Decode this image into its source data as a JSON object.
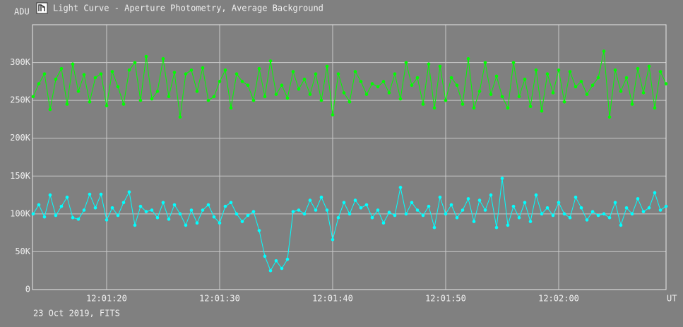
{
  "chart_data": {
    "type": "line",
    "title": "Light Curve - Aperture Photometry, Average Background",
    "ylabel": "ADU",
    "xlabel": "UT",
    "footer": "23 Oct 2019, FITS",
    "grid": true,
    "xlim": [
      73.44,
      129.5
    ],
    "xticks": [
      {
        "value": 80,
        "label": "12:01:20"
      },
      {
        "value": 90,
        "label": "12:01:30"
      },
      {
        "value": 100,
        "label": "12:01:40"
      },
      {
        "value": 110,
        "label": "12:01:50"
      },
      {
        "value": 120,
        "label": "12:02:00"
      }
    ],
    "ylim": [
      0,
      350000
    ],
    "yticks": [
      0,
      {
        "value": 50000,
        "label": "50K"
      },
      {
        "value": 100000,
        "label": "100K"
      },
      {
        "value": 150000,
        "label": "150K"
      },
      {
        "value": 200000,
        "label": "200K"
      },
      {
        "value": 250000,
        "label": "250K"
      },
      {
        "value": 300000,
        "label": "300K"
      }
    ],
    "x": [
      73.5,
      74,
      74.5,
      75,
      75.5,
      76,
      76.5,
      77,
      77.5,
      78,
      78.5,
      79,
      79.5,
      80,
      80.5,
      81,
      81.5,
      82,
      82.5,
      83,
      83.5,
      84,
      84.5,
      85,
      85.5,
      86,
      86.5,
      87,
      87.5,
      88,
      88.5,
      89,
      89.5,
      90,
      90.5,
      91,
      91.5,
      92,
      92.5,
      93,
      93.5,
      94,
      94.5,
      95,
      95.5,
      96,
      96.5,
      97,
      97.5,
      98,
      98.5,
      99,
      99.5,
      100,
      100.5,
      101,
      101.5,
      102,
      102.5,
      103,
      103.5,
      104,
      104.5,
      105,
      105.5,
      106,
      106.5,
      107,
      107.5,
      108,
      108.5,
      109,
      109.5,
      110,
      110.5,
      111,
      111.5,
      112,
      112.5,
      113,
      113.5,
      114,
      114.5,
      115,
      115.5,
      116,
      116.5,
      117,
      117.5,
      118,
      118.5,
      119,
      119.5,
      120,
      120.5,
      121,
      121.5,
      122,
      122.5,
      123,
      123.5,
      124,
      124.5,
      125,
      125.5,
      126,
      126.5,
      127,
      127.5,
      128,
      128.5,
      129,
      129.5
    ],
    "series": [
      {
        "color": "#00ff00",
        "values": [
          255000,
          272000,
          285000,
          238000,
          278000,
          292000,
          245000,
          298000,
          262000,
          284000,
          248000,
          280000,
          285000,
          243000,
          288000,
          268000,
          245000,
          290000,
          300000,
          250000,
          308000,
          252000,
          262000,
          305000,
          255000,
          287000,
          228000,
          285000,
          290000,
          262000,
          293000,
          250000,
          255000,
          275000,
          290000,
          240000,
          285000,
          275000,
          270000,
          250000,
          292000,
          255000,
          302000,
          258000,
          270000,
          253000,
          288000,
          265000,
          278000,
          258000,
          285000,
          250000,
          295000,
          231000,
          285000,
          260000,
          248000,
          288000,
          275000,
          258000,
          272000,
          268000,
          275000,
          260000,
          285000,
          252000,
          300000,
          270000,
          280000,
          245000,
          298000,
          240000,
          295000,
          250000,
          280000,
          270000,
          245000,
          305000,
          240000,
          262000,
          300000,
          258000,
          282000,
          255000,
          240000,
          300000,
          255000,
          278000,
          242000,
          290000,
          236000,
          285000,
          260000,
          290000,
          248000,
          288000,
          268000,
          275000,
          258000,
          270000,
          280000,
          315000,
          228000,
          290000,
          262000,
          280000,
          245000,
          292000,
          260000,
          295000,
          240000,
          288000,
          272000
        ]
      },
      {
        "color": "#00ffff",
        "values": [
          100000,
          112000,
          96000,
          125000,
          98000,
          110000,
          122000,
          95000,
          93000,
          105000,
          126000,
          108000,
          126000,
          92000,
          108000,
          98000,
          115000,
          129000,
          85000,
          110000,
          103000,
          105000,
          95000,
          115000,
          93000,
          112000,
          100000,
          85000,
          105000,
          88000,
          105000,
          112000,
          96000,
          88000,
          110000,
          115000,
          100000,
          90000,
          98000,
          103000,
          78000,
          44000,
          25000,
          38000,
          28000,
          40000,
          103000,
          105000,
          100000,
          118000,
          105000,
          122000,
          105000,
          66000,
          95000,
          115000,
          100000,
          118000,
          108000,
          112000,
          95000,
          105000,
          88000,
          102000,
          98000,
          135000,
          100000,
          115000,
          105000,
          98000,
          110000,
          82000,
          122000,
          100000,
          112000,
          95000,
          105000,
          120000,
          90000,
          118000,
          105000,
          125000,
          82000,
          147000,
          85000,
          110000,
          95000,
          115000,
          90000,
          125000,
          100000,
          108000,
          98000,
          115000,
          100000,
          95000,
          122000,
          108000,
          92000,
          103000,
          98000,
          100000,
          95000,
          115000,
          85000,
          108000,
          100000,
          120000,
          103000,
          108000,
          128000,
          105000,
          110000
        ]
      }
    ]
  }
}
